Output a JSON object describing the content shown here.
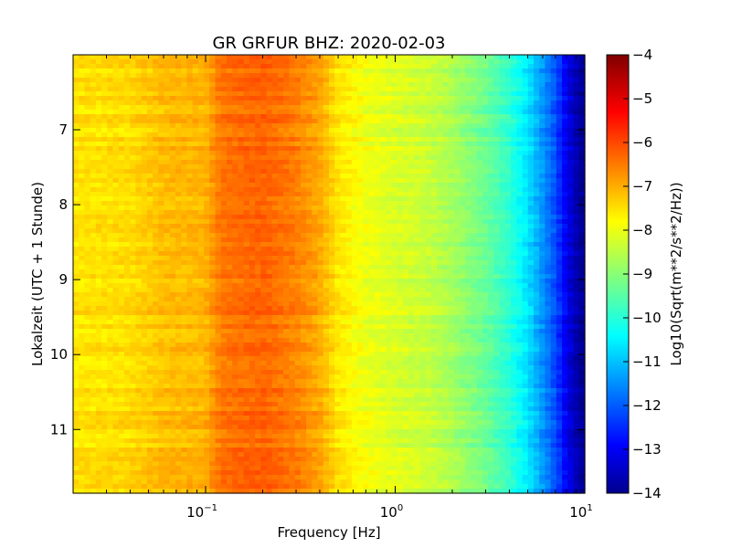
{
  "chart_data": {
    "type": "heatmap",
    "title": "GR GRFUR BHZ: 2020-02-03",
    "xlabel": "Frequency [Hz]",
    "ylabel": "Lokalzeit (UTC + 1 Stunde)",
    "x_scale": "log",
    "xlim": [
      0.02,
      10
    ],
    "x_ticks": [
      {
        "value": 0.1,
        "base": "10",
        "exp": "−1"
      },
      {
        "value": 1,
        "base": "10",
        "exp": "0"
      },
      {
        "value": 10,
        "base": "10",
        "exp": "1"
      }
    ],
    "ylim": [
      6.0,
      11.85
    ],
    "y_inverted": true,
    "y_ticks": [
      7,
      8,
      9,
      10,
      11
    ],
    "colorbar": {
      "label": "Log10(Sqrt(m**2/s**2/Hz))",
      "colormap": "jet",
      "vmin": -14,
      "vmax": -4,
      "ticks": [
        -4,
        -5,
        -6,
        -7,
        -8,
        -9,
        -10,
        -11,
        -12,
        -13,
        -14
      ]
    },
    "spectrum_profile": {
      "frequency_hz": [
        0.02,
        0.04,
        0.06,
        0.1,
        0.12,
        0.2,
        0.3,
        0.4,
        0.5,
        0.7,
        1.0,
        1.5,
        2.0,
        3.0,
        4.0,
        5.0,
        6.0,
        7.0,
        8.0,
        9.0,
        10.0
      ],
      "median_log10_amplitude": [
        -7.5,
        -7.4,
        -7.1,
        -7.0,
        -6.4,
        -6.2,
        -6.5,
        -6.9,
        -7.5,
        -7.9,
        -8.1,
        -8.3,
        -8.6,
        -9.2,
        -9.8,
        -10.5,
        -11.3,
        -12.0,
        -12.9,
        -13.5,
        -13.9
      ]
    },
    "grid": false
  },
  "colors": {
    "jet_low": "#00008f",
    "jet_high": "#800000"
  }
}
